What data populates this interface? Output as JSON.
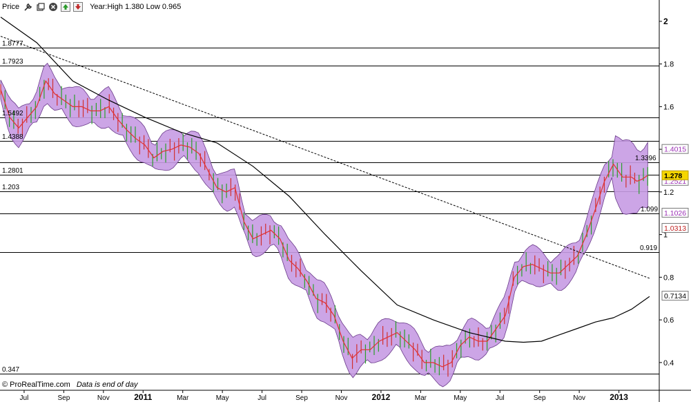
{
  "toolbar": {
    "label": "Price",
    "icons": [
      "wrench-icon",
      "window-icon",
      "close-icon",
      "up-arrow-icon",
      "down-arrow-icon"
    ],
    "summary": "Year:High 1.380 Low 0.965"
  },
  "footer": {
    "brand": "© ProRealTime.com",
    "note": "Data is end of day"
  },
  "chart_data": {
    "type": "line",
    "ylim": [
      0.27,
      2.1
    ],
    "grid": false,
    "y_ticks": [
      "2",
      "1.8",
      "1.6",
      "1.4",
      "1.2",
      "1",
      "0.8",
      "0.6",
      "0.4"
    ],
    "x_ticks": [
      "Jul",
      "Sep",
      "Nov",
      "2011",
      "Mar",
      "May",
      "Jul",
      "Sep",
      "Nov",
      "2012",
      "Mar",
      "May",
      "Jul",
      "Sep",
      "Nov",
      "2013"
    ],
    "horizontal_levels": [
      {
        "value": 1.8777,
        "label": "1.8777"
      },
      {
        "value": 1.7923,
        "label": "1.7923"
      },
      {
        "value": 1.5492,
        "label": "1.5492"
      },
      {
        "value": 1.4388,
        "label": "1.4388"
      },
      {
        "value": 1.3396,
        "label": "1.3396"
      },
      {
        "value": 1.2801,
        "label": "1.2801"
      },
      {
        "value": 1.203,
        "label": "1.203"
      },
      {
        "value": 1.099,
        "label": "1.099"
      },
      {
        "value": 0.919,
        "label": "0.919"
      },
      {
        "value": 0.347,
        "label": "0.347"
      }
    ],
    "right_badges": [
      {
        "label": "1.4015",
        "value": 1.4015,
        "color": "#9b30b5",
        "highlight": false
      },
      {
        "label": "1.2521",
        "value": 1.2521,
        "color": "#9b30b5",
        "highlight": false
      },
      {
        "label": "1.278",
        "value": 1.278,
        "color": "#000000",
        "highlight": true
      },
      {
        "label": "1.1026",
        "value": 1.1026,
        "color": "#9b30b5",
        "highlight": false
      },
      {
        "label": "1.0313",
        "value": 1.0313,
        "color": "#c02020",
        "highlight": false
      },
      {
        "label": "0.7134",
        "value": 0.7134,
        "color": "#000000",
        "highlight": false
      }
    ],
    "colors": {
      "band": "#c79be3",
      "band_edge": "#6a3a8a",
      "ma": "#e23030",
      "long_ma": "#000000",
      "trend": "#000000",
      "candle_up": "#2aa02a",
      "candle_down": "#d03030"
    },
    "x_range": [
      0,
      36.5
    ],
    "series": [
      {
        "x": [
          0,
          0.5,
          1,
          1.5,
          2,
          2.5,
          3,
          3.5,
          4,
          4.5,
          5,
          5.5,
          6,
          6.5,
          7,
          7.5,
          8,
          8.5,
          9,
          9.5,
          10,
          10.5,
          11,
          11.5,
          12,
          12.5,
          13,
          13.5,
          14,
          14.5,
          15,
          15.5,
          16,
          16.5,
          17,
          17.5,
          18,
          18.5,
          19,
          19.5,
          20,
          20.5,
          21,
          21.5,
          22,
          22.5,
          23,
          23.5,
          24,
          24.5,
          25,
          25.5,
          26,
          26.5,
          27,
          27.5,
          28,
          28.5,
          29,
          29.5,
          30,
          30.5,
          31,
          31.5,
          32,
          32.5,
          33,
          33.5,
          34,
          34.5,
          35,
          35.3,
          35.6,
          35.9
        ],
        "values": [
          1.68,
          1.55,
          1.5,
          1.55,
          1.6,
          1.72,
          1.66,
          1.63,
          1.6,
          1.6,
          1.58,
          1.58,
          1.6,
          1.54,
          1.49,
          1.45,
          1.42,
          1.36,
          1.39,
          1.4,
          1.42,
          1.41,
          1.38,
          1.3,
          1.22,
          1.2,
          1.22,
          1.06,
          0.98,
          1.0,
          1.02,
          0.98,
          0.88,
          0.84,
          0.78,
          0.7,
          0.68,
          0.62,
          0.5,
          0.42,
          0.46,
          0.46,
          0.5,
          0.52,
          0.54,
          0.5,
          0.46,
          0.4,
          0.4,
          0.38,
          0.4,
          0.48,
          0.52,
          0.5,
          0.5,
          0.56,
          0.62,
          0.8,
          0.85,
          0.86,
          0.84,
          0.82,
          0.82,
          0.86,
          0.9,
          1.0,
          1.12,
          1.25,
          1.33,
          1.27,
          1.27,
          1.25,
          1.26,
          1.278
        ]
      },
      {
        "x": [
          0,
          2,
          4,
          6,
          8,
          10,
          12,
          14,
          16,
          18,
          20,
          22,
          24,
          26,
          28,
          29,
          30,
          31,
          32,
          33,
          34,
          35,
          36
        ],
        "values": [
          2.02,
          1.9,
          1.72,
          1.63,
          1.55,
          1.48,
          1.43,
          1.32,
          1.18,
          1.0,
          0.83,
          0.67,
          0.6,
          0.54,
          0.5,
          0.495,
          0.5,
          0.53,
          0.56,
          0.59,
          0.61,
          0.65,
          0.71
        ]
      },
      {
        "x": [
          0,
          36
        ],
        "values": [
          1.93,
          0.795
        ]
      }
    ]
  }
}
